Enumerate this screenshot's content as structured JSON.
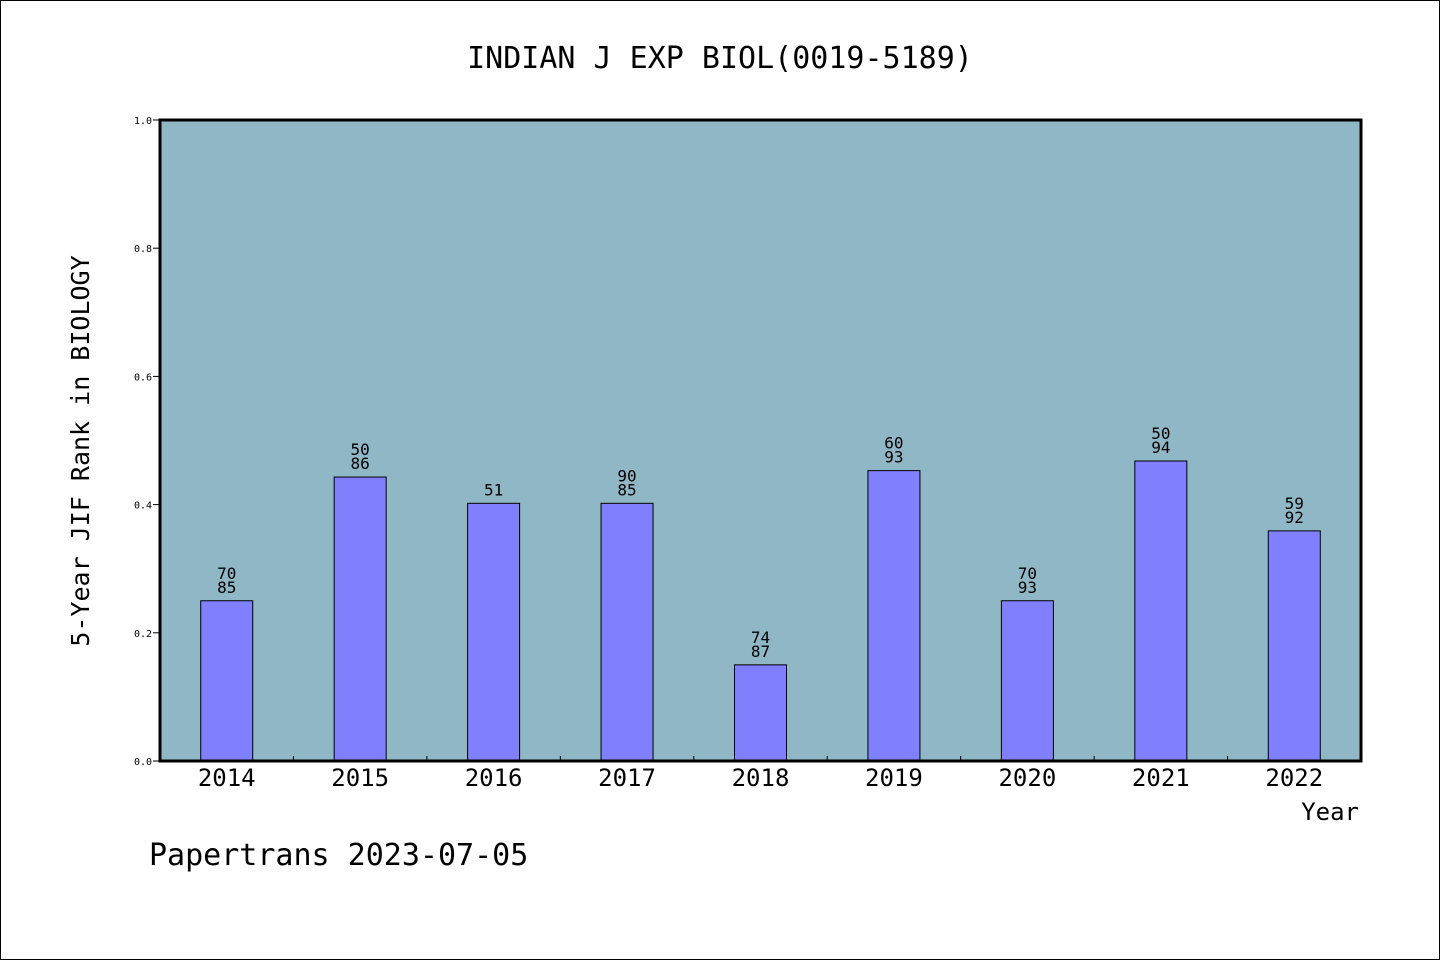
{
  "chart_data": {
    "type": "bar",
    "title": "INDIAN J EXP BIOL(0019-5189)",
    "xlabel": "Year",
    "ylabel": "5-Year JIF Rank in BIOLOGY",
    "categories": [
      "2014",
      "2015",
      "2016",
      "2017",
      "2018",
      "2019",
      "2020",
      "2021",
      "2022"
    ],
    "values": [
      0.25,
      0.443,
      0.402,
      0.402,
      0.15,
      0.453,
      0.25,
      0.468,
      0.359
    ],
    "labels": [
      [
        "70",
        "85"
      ],
      [
        "50",
        "86"
      ],
      [
        "51"
      ],
      [
        "90",
        "85"
      ],
      [
        "74",
        "87"
      ],
      [
        "60",
        "93"
      ],
      [
        "70",
        "93"
      ],
      [
        "50",
        "94"
      ],
      [
        "59",
        "92"
      ]
    ],
    "ylim": [
      0,
      1.0
    ],
    "yticks": [
      "0.0",
      "0.2",
      "0.4",
      "0.6",
      "0.8",
      "1.0"
    ],
    "grid": false,
    "colors": {
      "plot_bg": "#8fb7c5",
      "bar": "#8080ff",
      "axis": "#000000"
    }
  },
  "footer": "Papertrans 2023-07-05"
}
